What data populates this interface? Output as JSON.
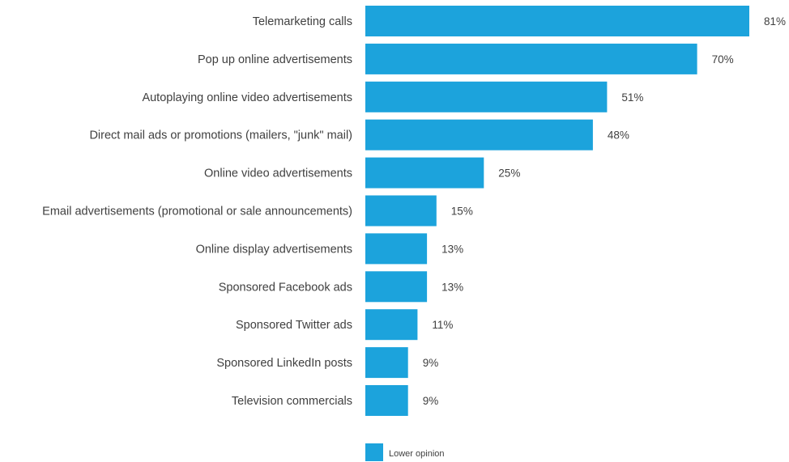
{
  "chart_data": {
    "type": "bar",
    "orientation": "horizontal",
    "categories": [
      "Telemarketing calls",
      "Pop up online advertisements",
      "Autoplaying online video advertisements",
      "Direct mail ads or promotions (mailers, \"junk\" mail)",
      "Online video advertisements",
      "Email advertisements (promotional or sale announcements)",
      "Online display advertisements",
      "Sponsored Facebook ads",
      "Sponsored Twitter ads",
      "Sponsored LinkedIn posts",
      "Television commercials"
    ],
    "series": [
      {
        "name": "Lower opinion",
        "values": [
          81,
          70,
          51,
          48,
          25,
          15,
          13,
          13,
          11,
          9,
          9
        ],
        "labels": [
          "81%",
          "70%",
          "51%",
          "48%",
          "25%",
          "15%",
          "13%",
          "13%",
          "11%",
          "9%",
          "9%"
        ]
      }
    ],
    "unit": "%",
    "xlim": [
      0,
      81
    ],
    "grid": false,
    "legend": {
      "position": "bottom-center",
      "entries": [
        "Lower opinion"
      ]
    },
    "colors": {
      "bar": "#1ca3dc"
    }
  }
}
